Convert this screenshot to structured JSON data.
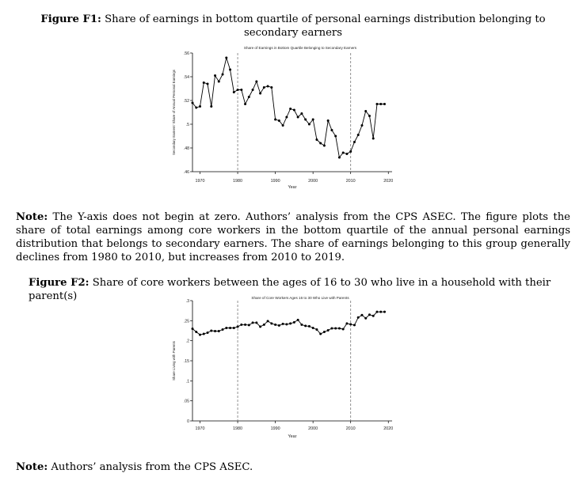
{
  "figure1": {
    "label": "Figure F1:",
    "caption": "Share of earnings in bottom quartile of personal earnings distribution belonging to secondary earners"
  },
  "note1": {
    "label": "Note:",
    "text": "The Y-axis does not begin at zero. Authors’ analysis from the CPS ASEC. The figure plots the share of total earnings among core workers in the bottom quartile of the annual personal earnings distribution that belongs to secondary earners. The share of earnings belonging to this group generally declines from 1980 to 2010, but increases from 2010 to 2019."
  },
  "figure2": {
    "label": "Figure F2:",
    "caption": "Share of core workers between the ages of 16 to 30 who live in a household with their parent(s)"
  },
  "note2": {
    "label": "Note:",
    "text": "Authors’ analysis from the CPS ASEC."
  },
  "chart_data": [
    {
      "type": "line",
      "title": "Share of Earnings in Bottom Quartile Belonging to Secondary Earners",
      "xlabel": "Year",
      "ylabel": "Secondary Earners' Share of Annual Personal Earnings",
      "xlim": [
        1968,
        2021
      ],
      "ylim": [
        0.46,
        0.56
      ],
      "xticks": [
        "1970",
        "1980",
        "1990",
        "2000",
        "2010",
        "2020"
      ],
      "yticks": [
        ".46",
        ".48",
        ".5",
        ".52",
        ".54",
        ".56"
      ],
      "vlines": [
        1980,
        2010
      ],
      "x": [
        1968,
        1969,
        1970,
        1971,
        1972,
        1973,
        1974,
        1975,
        1976,
        1977,
        1978,
        1979,
        1980,
        1981,
        1982,
        1983,
        1984,
        1985,
        1986,
        1987,
        1988,
        1989,
        1990,
        1991,
        1992,
        1993,
        1994,
        1995,
        1996,
        1997,
        1998,
        1999,
        2000,
        2001,
        2002,
        2003,
        2004,
        2005,
        2006,
        2007,
        2008,
        2009,
        2010,
        2011,
        2012,
        2013,
        2014,
        2015,
        2016,
        2017,
        2018,
        2019
      ],
      "y": [
        0.518,
        0.514,
        0.515,
        0.535,
        0.534,
        0.515,
        0.541,
        0.536,
        0.542,
        0.556,
        0.546,
        0.527,
        0.529,
        0.529,
        0.517,
        0.523,
        0.529,
        0.536,
        0.526,
        0.531,
        0.532,
        0.531,
        0.504,
        0.503,
        0.499,
        0.506,
        0.513,
        0.512,
        0.506,
        0.509,
        0.504,
        0.5,
        0.504,
        0.487,
        0.484,
        0.482,
        0.503,
        0.495,
        0.49,
        0.472,
        0.476,
        0.475,
        0.477,
        0.485,
        0.491,
        0.499,
        0.511,
        0.507,
        0.488,
        0.517,
        0.517,
        0.517
      ]
    },
    {
      "type": "line",
      "title": "Share of Core Workers Ages 16 to 30 Who Live with Parents",
      "xlabel": "Year",
      "ylabel": "Share Living with Parents",
      "xlim": [
        1968,
        2021
      ],
      "ylim": [
        0,
        0.3
      ],
      "xticks": [
        "1970",
        "1980",
        "1990",
        "2000",
        "2010",
        "2020"
      ],
      "yticks": [
        "0",
        ".05",
        ".1",
        ".15",
        ".2",
        ".25",
        ".3"
      ],
      "vlines": [
        1980,
        2010
      ],
      "x": [
        1968,
        1969,
        1970,
        1971,
        1972,
        1973,
        1974,
        1975,
        1976,
        1977,
        1978,
        1979,
        1980,
        1981,
        1982,
        1983,
        1984,
        1985,
        1986,
        1987,
        1988,
        1989,
        1990,
        1991,
        1992,
        1993,
        1994,
        1995,
        1996,
        1997,
        1998,
        1999,
        2000,
        2001,
        2002,
        2003,
        2004,
        2005,
        2006,
        2007,
        2008,
        2009,
        2010,
        2011,
        2012,
        2013,
        2014,
        2015,
        2016,
        2017,
        2018,
        2019
      ],
      "y": [
        0.23,
        0.222,
        0.215,
        0.217,
        0.22,
        0.225,
        0.224,
        0.224,
        0.228,
        0.232,
        0.232,
        0.232,
        0.235,
        0.24,
        0.24,
        0.239,
        0.245,
        0.245,
        0.235,
        0.24,
        0.249,
        0.243,
        0.24,
        0.238,
        0.242,
        0.241,
        0.243,
        0.246,
        0.252,
        0.24,
        0.237,
        0.236,
        0.232,
        0.228,
        0.217,
        0.222,
        0.226,
        0.231,
        0.231,
        0.231,
        0.229,
        0.243,
        0.241,
        0.239,
        0.258,
        0.264,
        0.256,
        0.265,
        0.262,
        0.272,
        0.272,
        0.272
      ]
    }
  ]
}
